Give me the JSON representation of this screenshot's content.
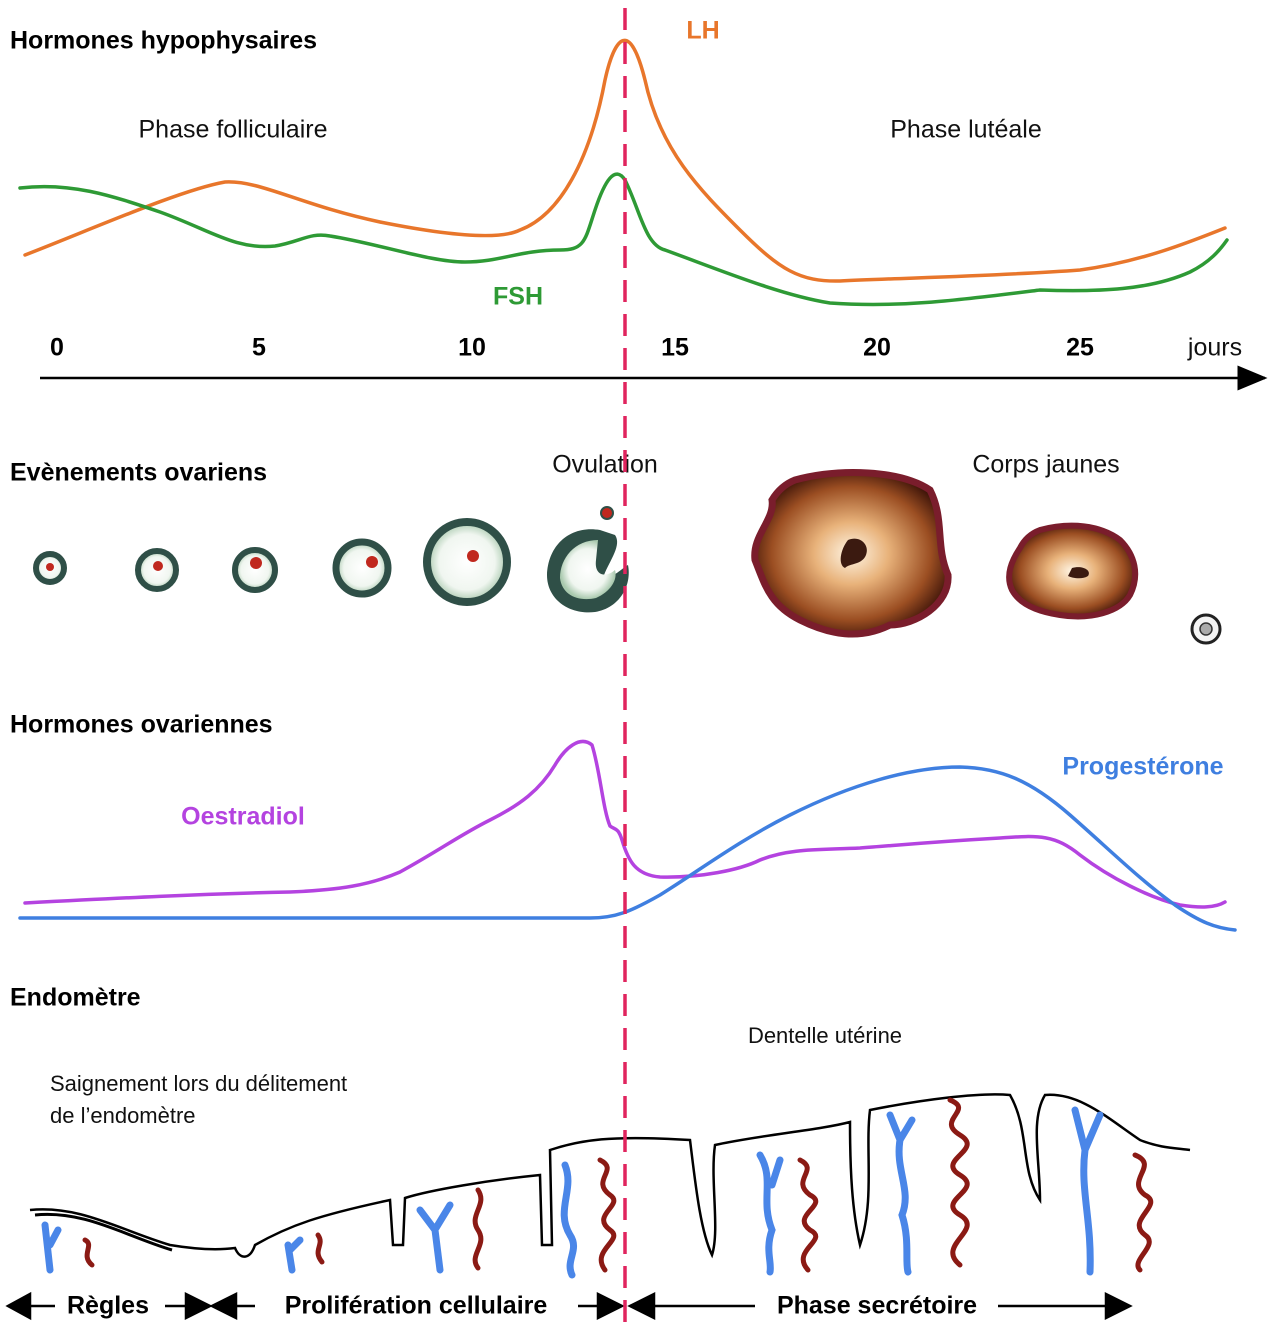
{
  "pituitary": {
    "title": "Hormones hypophysaires",
    "phase_follicular": "Phase folliculaire",
    "phase_luteal": "Phase lutéale",
    "lh": "LH",
    "fsh": "FSH"
  },
  "axis": {
    "ticks": [
      "0",
      "5",
      "10",
      "15",
      "20",
      "25"
    ],
    "unit": "jours"
  },
  "ovarian_events": {
    "title": "Evènements ovariens",
    "ovulation": "Ovulation",
    "corpus_luteum": "Corps jaunes"
  },
  "ovarian_hormones": {
    "title": "Hormones ovariennes",
    "oestradiol": "Oestradiol",
    "progesterone": "Progestérone"
  },
  "endometrium": {
    "title": "Endomètre",
    "lace": "Dentelle utérine",
    "bleeding": [
      "Saignement lors du délitement",
      "de l’endomètre"
    ],
    "phases": [
      "Règles",
      "Prolifération cellulaire",
      "Phase secrétoire"
    ]
  }
}
